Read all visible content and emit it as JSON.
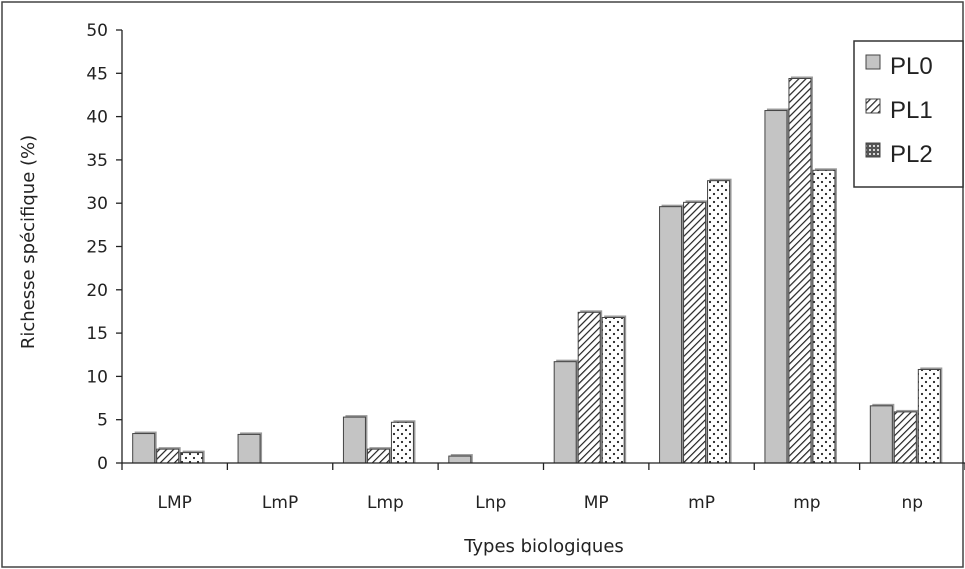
{
  "chart_data": {
    "type": "bar",
    "title": "",
    "xlabel": "Types biologiques",
    "ylabel": "Richesse spécifique (%)",
    "ylim": [
      0,
      50
    ],
    "yticks": [
      0,
      5,
      10,
      15,
      20,
      25,
      30,
      35,
      40,
      45,
      50
    ],
    "categories": [
      "LMP",
      "LmP",
      "Lmp",
      "Lnp",
      "MP",
      "mP",
      "mp",
      "np"
    ],
    "series": [
      {
        "name": "PL0",
        "pattern": "solid-gray",
        "values": [
          3.4,
          3.3,
          5.3,
          0.8,
          11.7,
          29.6,
          40.7,
          6.6
        ]
      },
      {
        "name": "PL1",
        "pattern": "diagonal-hatch",
        "values": [
          1.6,
          0,
          1.6,
          0,
          17.4,
          30.1,
          44.4,
          5.9
        ]
      },
      {
        "name": "PL2",
        "pattern": "dotted",
        "values": [
          1.2,
          0,
          4.7,
          0,
          16.8,
          32.6,
          33.8,
          10.8
        ]
      }
    ],
    "legend_position": "top-right",
    "grid": false
  }
}
